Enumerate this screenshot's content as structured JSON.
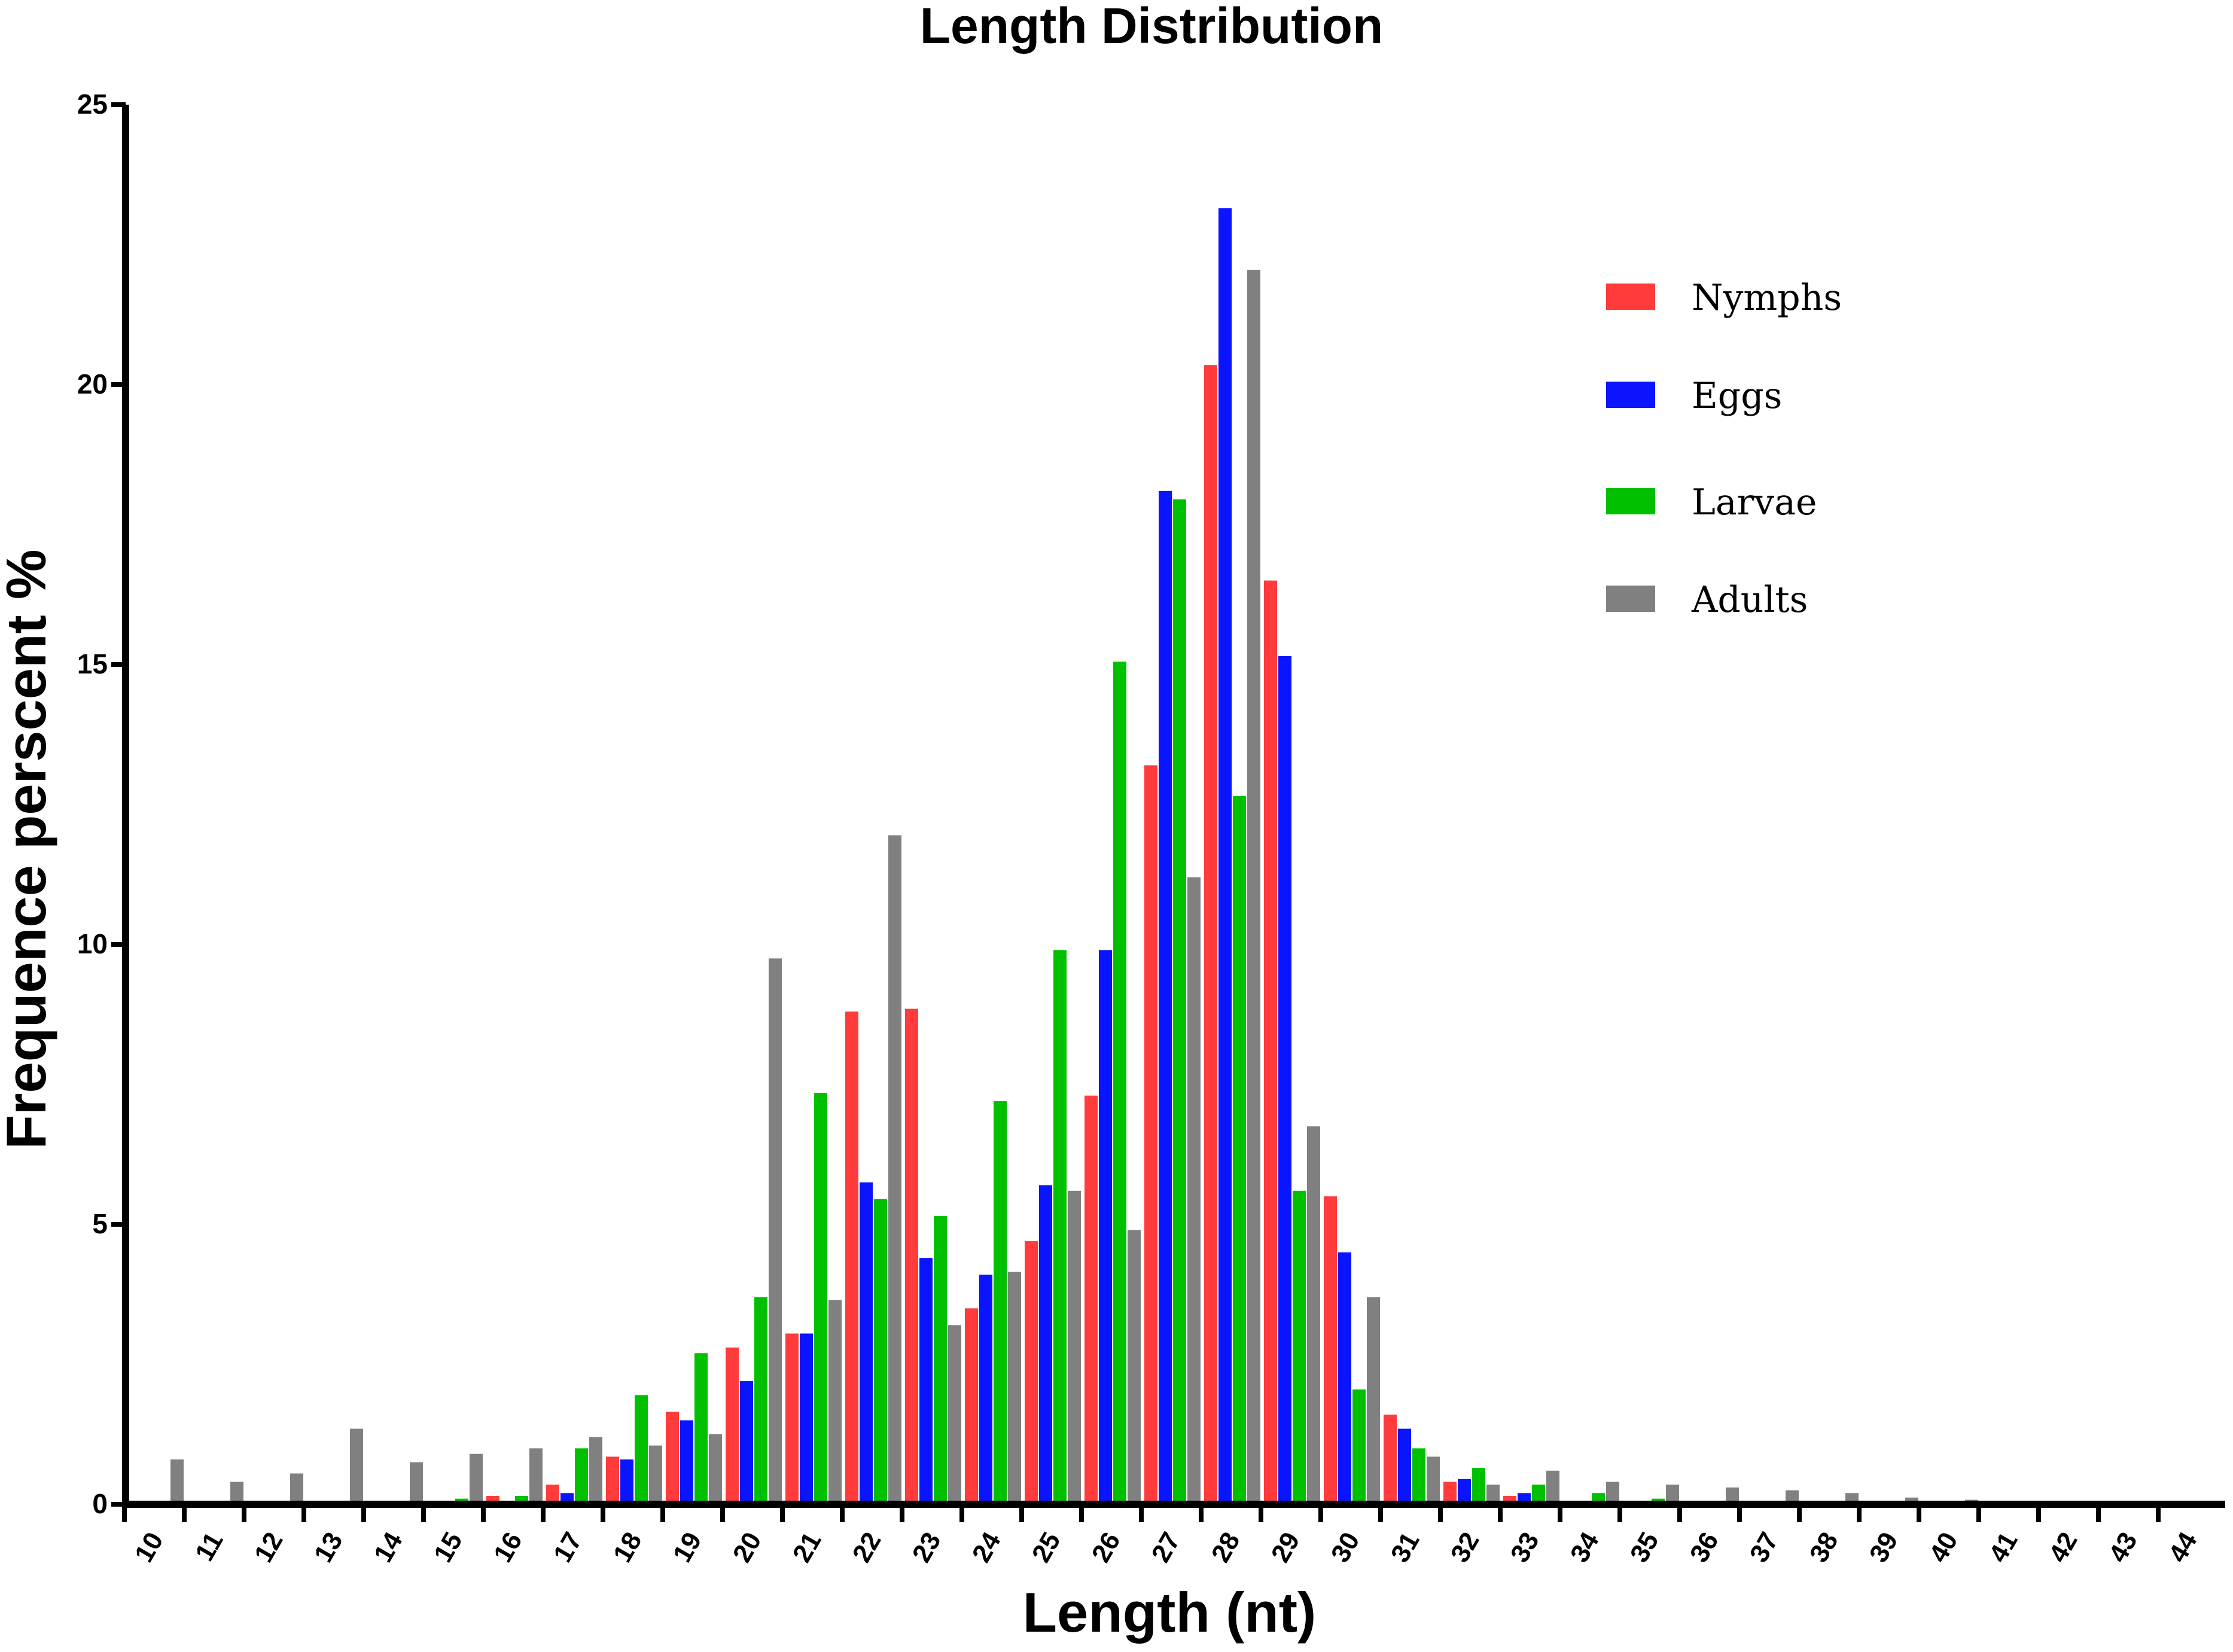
{
  "chart_data": {
    "type": "bar",
    "title": "Length Distribution",
    "xlabel": "Length (nt)",
    "ylabel": "Frequence perscent %",
    "ylim": [
      0,
      25
    ],
    "yticks": [
      "0",
      "5",
      "10",
      "15",
      "20",
      "25"
    ],
    "categories": [
      "10",
      "11",
      "12",
      "13",
      "14",
      "15",
      "16",
      "17",
      "18",
      "19",
      "20",
      "21",
      "22",
      "23",
      "24",
      "25",
      "26",
      "27",
      "28",
      "29",
      "30",
      "31",
      "32",
      "33",
      "34",
      "35",
      "36",
      "37",
      "38",
      "39",
      "40",
      "41",
      "42",
      "43",
      "44"
    ],
    "legend_position": "top-right",
    "grid": false,
    "series": [
      {
        "name": "Nymphs",
        "color": "#ff3b3b",
        "values": [
          0,
          0,
          0,
          0,
          0,
          0.05,
          0.15,
          0.35,
          0.85,
          1.65,
          2.8,
          3.05,
          8.8,
          8.85,
          3.5,
          4.7,
          7.3,
          13.2,
          20.35,
          16.5,
          5.5,
          1.6,
          0.4,
          0.15,
          0.05,
          0,
          0,
          0,
          0,
          0,
          0,
          0,
          0,
          0,
          0
        ]
      },
      {
        "name": "Eggs",
        "color": "#0a14ff",
        "values": [
          0,
          0,
          0,
          0,
          0,
          0,
          0.05,
          0.2,
          0.8,
          1.5,
          2.2,
          3.05,
          5.75,
          4.4,
          4.1,
          5.7,
          9.9,
          18.1,
          23.15,
          15.15,
          4.5,
          1.35,
          0.45,
          0.2,
          0.05,
          0,
          0,
          0,
          0,
          0,
          0,
          0,
          0,
          0,
          0
        ]
      },
      {
        "name": "Larvae",
        "color": "#00c000",
        "values": [
          0,
          0,
          0,
          0,
          0.05,
          0.1,
          0.15,
          1.0,
          1.95,
          2.7,
          3.7,
          7.35,
          5.45,
          5.15,
          7.2,
          9.9,
          15.05,
          17.95,
          12.65,
          5.6,
          2.05,
          1.0,
          0.65,
          0.35,
          0.2,
          0.1,
          0,
          0,
          0,
          0,
          0,
          0,
          0,
          0,
          0
        ]
      },
      {
        "name": "Adults",
        "color": "#808080",
        "values": [
          0.8,
          0.4,
          0.55,
          1.35,
          0.75,
          0.9,
          1.0,
          1.2,
          1.05,
          1.25,
          9.75,
          3.65,
          11.95,
          3.2,
          4.15,
          5.6,
          4.9,
          11.2,
          22.05,
          6.75,
          3.7,
          0.85,
          0.35,
          0.6,
          0.4,
          0.35,
          0.3,
          0.25,
          0.2,
          0.12,
          0.08,
          0.05,
          0.03,
          0.02,
          0.01
        ]
      }
    ]
  }
}
